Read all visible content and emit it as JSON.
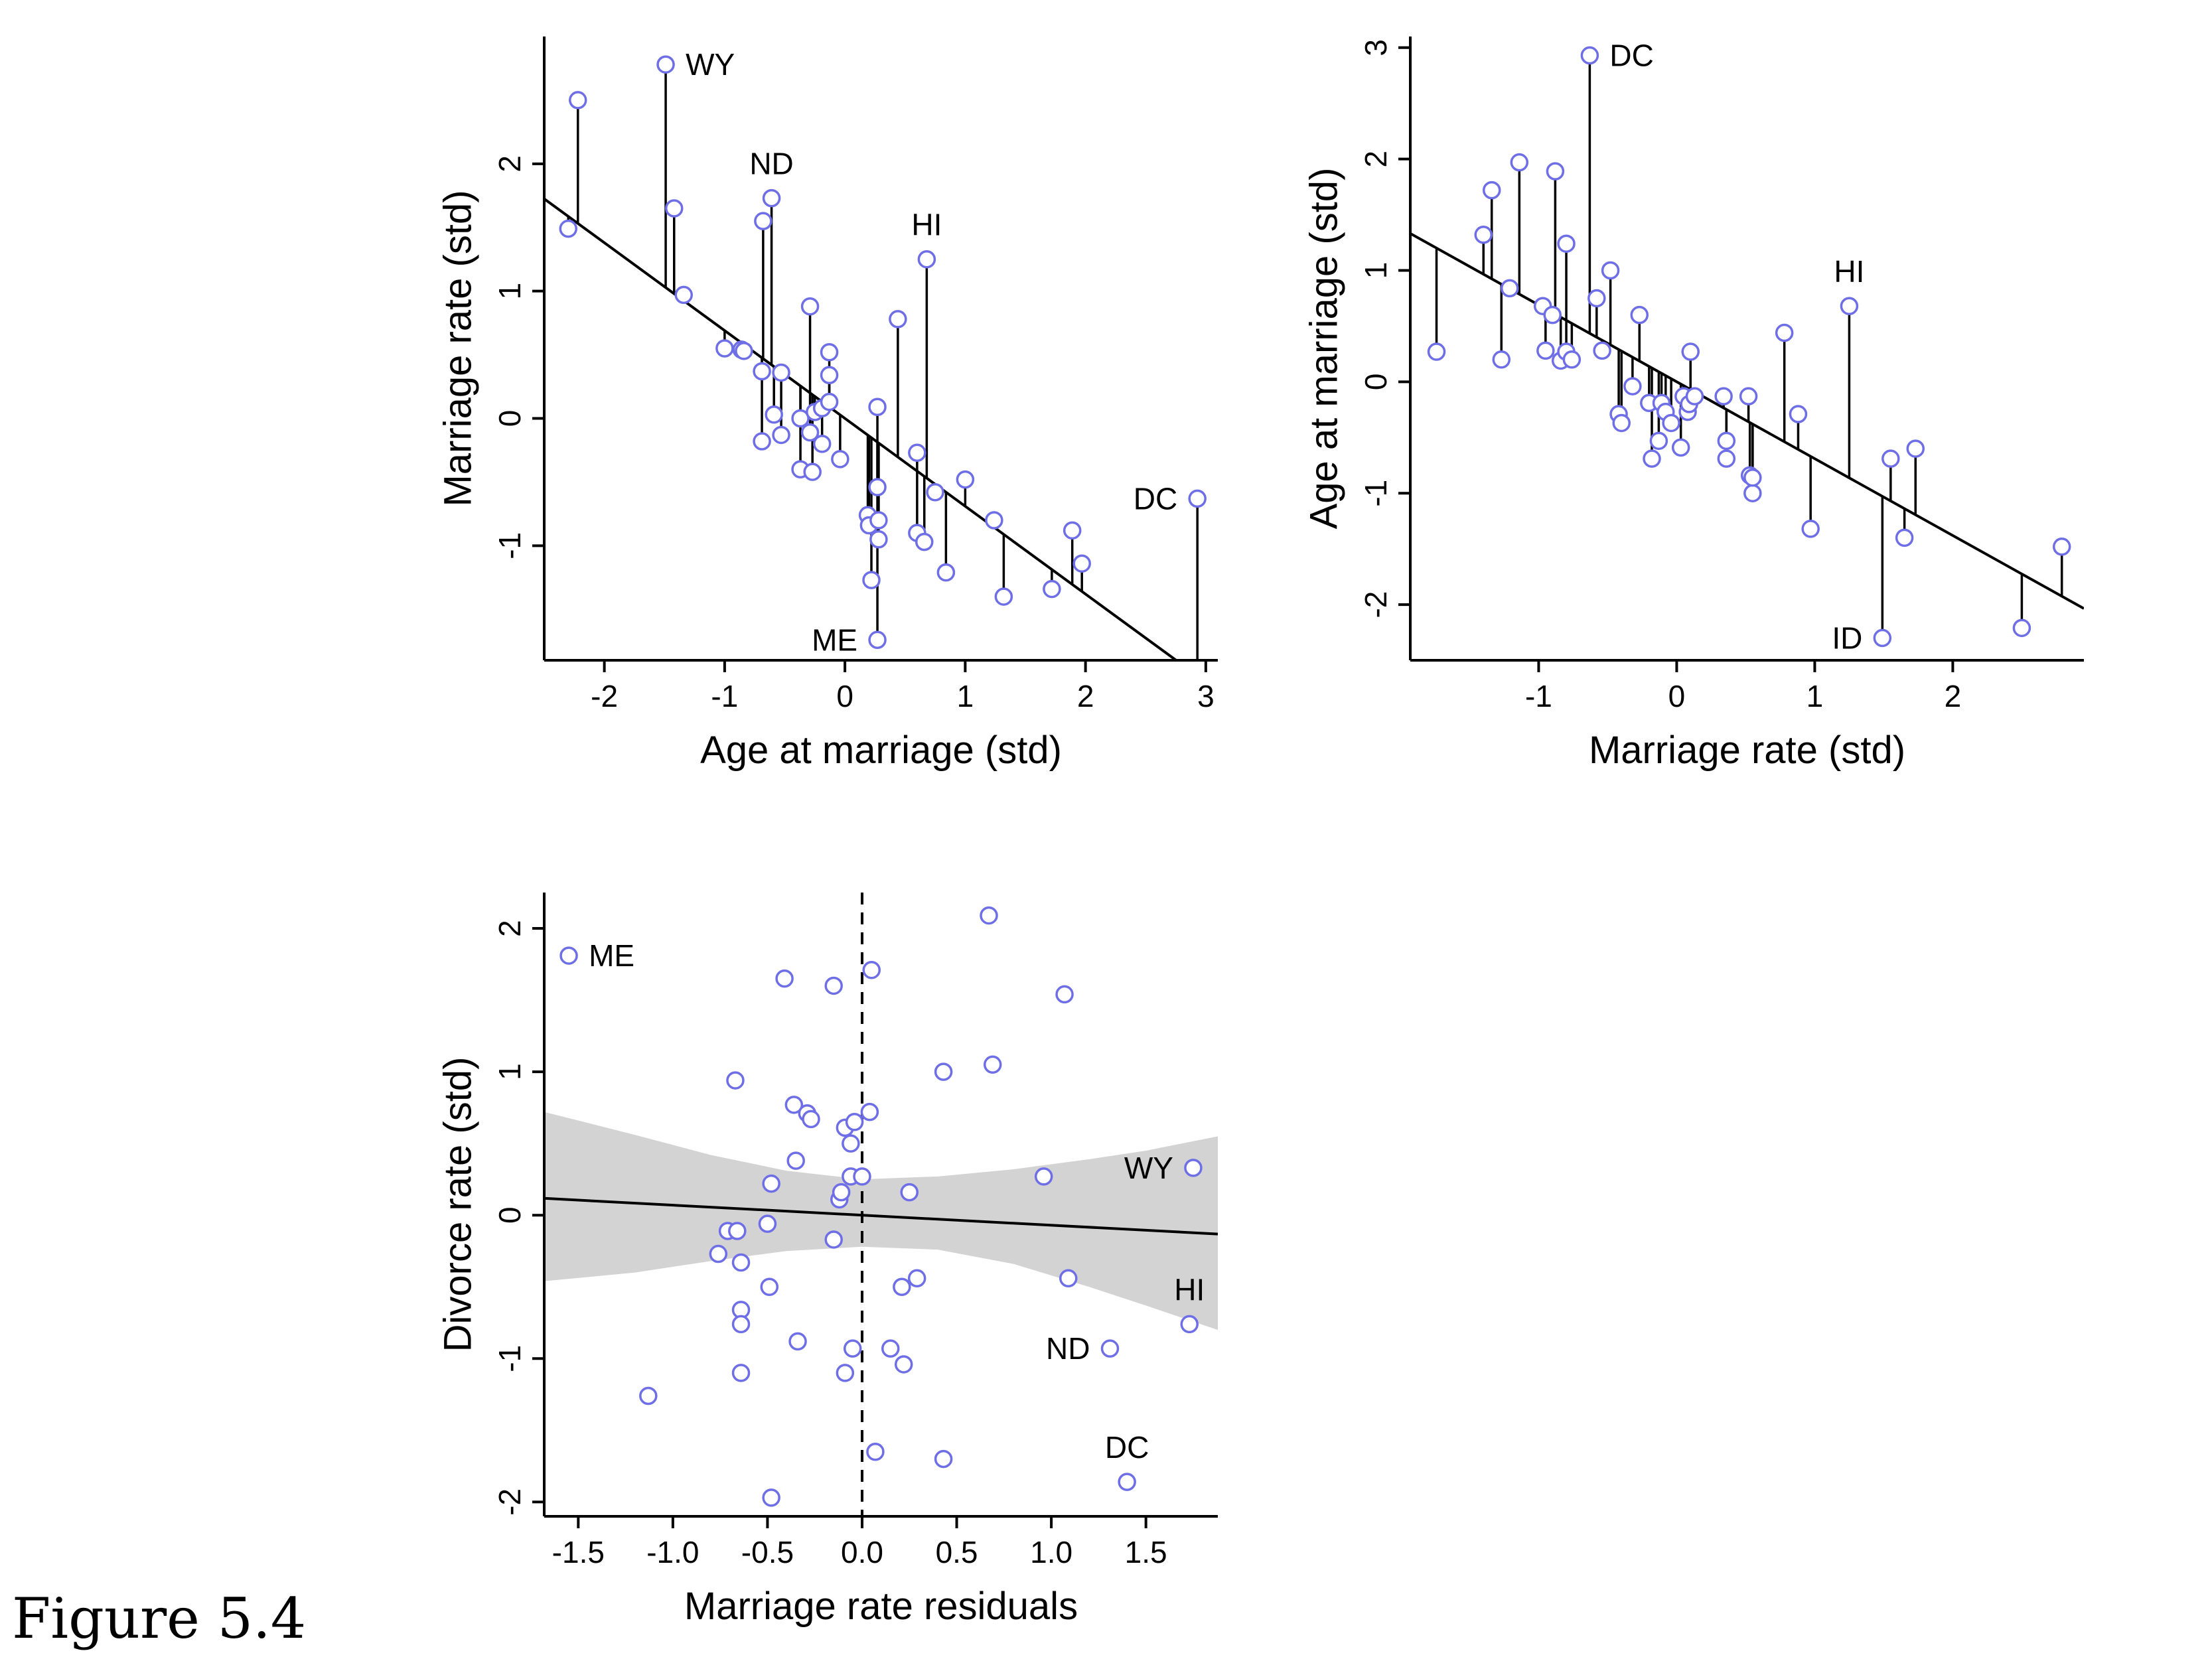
{
  "caption": "Figure 5.4",
  "colors": {
    "point": "#6e6ee6",
    "band": "#d3d3d3",
    "line": "#000000"
  },
  "chart_data": [
    {
      "type": "scatter",
      "title": "",
      "xlabel": "Age at marriage (std)",
      "ylabel": "Marriage rate (std)",
      "xlim": [
        -2.5,
        3.1
      ],
      "ylim": [
        -1.9,
        3.0
      ],
      "xticks": [
        -2,
        -1,
        0,
        1,
        2,
        3
      ],
      "yticks": [
        -1,
        0,
        1,
        2
      ],
      "xticklabels": [
        "-2",
        "-1",
        "0",
        "1",
        "2",
        "3"
      ],
      "yticklabels": [
        "-1",
        "0",
        "1",
        "2"
      ],
      "regression": {
        "intercept": 0.0,
        "slope": -0.69
      },
      "residual_segments": true,
      "labels": [
        {
          "text": "WY",
          "x": -1.49,
          "y": 2.78,
          "side": "right"
        },
        {
          "text": "ND",
          "x": -0.61,
          "y": 1.73,
          "side": "top"
        },
        {
          "text": "HI",
          "x": 0.68,
          "y": 1.25,
          "side": "top"
        },
        {
          "text": "DC",
          "x": 2.93,
          "y": -0.63,
          "side": "left"
        },
        {
          "text": "ME",
          "x": 0.27,
          "y": -1.74,
          "side": "left"
        }
      ],
      "points": [
        [
          -2.3,
          1.49
        ],
        [
          -2.22,
          2.5
        ],
        [
          -1.49,
          2.78
        ],
        [
          -1.42,
          1.65
        ],
        [
          -1.34,
          0.97
        ],
        [
          -1.0,
          0.55
        ],
        [
          -0.86,
          0.54
        ],
        [
          -0.84,
          0.53
        ],
        [
          -0.69,
          0.37
        ],
        [
          -0.68,
          1.55
        ],
        [
          -0.69,
          -0.18
        ],
        [
          -0.61,
          1.73
        ],
        [
          -0.59,
          0.03
        ],
        [
          -0.53,
          0.36
        ],
        [
          -0.53,
          -0.13
        ],
        [
          -0.37,
          0.0
        ],
        [
          -0.37,
          -0.4
        ],
        [
          -0.29,
          0.88
        ],
        [
          -0.29,
          -0.11
        ],
        [
          -0.27,
          -0.42
        ],
        [
          -0.25,
          0.05
        ],
        [
          -0.19,
          0.08
        ],
        [
          -0.19,
          -0.2
        ],
        [
          -0.13,
          0.52
        ],
        [
          -0.13,
          0.34
        ],
        [
          -0.13,
          0.13
        ],
        [
          -0.04,
          -0.32
        ],
        [
          0.27,
          0.09
        ],
        [
          0.27,
          -0.54
        ],
        [
          0.19,
          -0.76
        ],
        [
          0.2,
          -0.84
        ],
        [
          0.22,
          -1.27
        ],
        [
          0.28,
          -0.8
        ],
        [
          0.28,
          -0.95
        ],
        [
          0.27,
          -1.74
        ],
        [
          0.44,
          0.78
        ],
        [
          0.6,
          -0.27
        ],
        [
          0.6,
          -0.9
        ],
        [
          0.66,
          -0.97
        ],
        [
          0.68,
          1.25
        ],
        [
          0.75,
          -0.58
        ],
        [
          0.84,
          -1.21
        ],
        [
          1.0,
          -0.48
        ],
        [
          1.24,
          -0.8
        ],
        [
          1.32,
          -1.4
        ],
        [
          1.72,
          -1.34
        ],
        [
          1.89,
          -0.88
        ],
        [
          1.97,
          -1.14
        ],
        [
          2.93,
          -0.63
        ]
      ]
    },
    {
      "type": "scatter",
      "title": "",
      "xlabel": "Marriage rate (std)",
      "ylabel": "Age at marriage (std)",
      "xlim": [
        -1.93,
        2.95
      ],
      "ylim": [
        -2.5,
        3.1
      ],
      "xticks": [
        -1,
        0,
        1,
        2
      ],
      "yticks": [
        -2,
        -1,
        0,
        1,
        2,
        3
      ],
      "xticklabels": [
        "-1",
        "0",
        "1",
        "2"
      ],
      "yticklabels": [
        "-2",
        "-1",
        "0",
        "1",
        "2",
        "3"
      ],
      "regression": {
        "intercept": 0.0,
        "slope": -0.69
      },
      "residual_segments": true,
      "labels": [
        {
          "text": "DC",
          "x": -0.63,
          "y": 2.93,
          "side": "right"
        },
        {
          "text": "HI",
          "x": 1.25,
          "y": 0.68,
          "side": "top"
        },
        {
          "text": "ID",
          "x": 1.49,
          "y": -2.3,
          "side": "left"
        }
      ],
      "points": [
        [
          -1.74,
          0.27
        ],
        [
          -1.4,
          1.32
        ],
        [
          -1.34,
          1.72
        ],
        [
          -1.27,
          0.2
        ],
        [
          -1.21,
          0.84
        ],
        [
          -1.14,
          1.97
        ],
        [
          -0.97,
          0.68
        ],
        [
          -0.95,
          0.28
        ],
        [
          -0.9,
          0.6
        ],
        [
          -0.88,
          1.89
        ],
        [
          -0.84,
          0.19
        ],
        [
          -0.8,
          0.27
        ],
        [
          -0.8,
          1.24
        ],
        [
          -0.76,
          0.2
        ],
        [
          -0.63,
          2.93
        ],
        [
          -0.58,
          0.75
        ],
        [
          -0.54,
          0.28
        ],
        [
          -0.48,
          1.0
        ],
        [
          -0.42,
          -0.29
        ],
        [
          -0.4,
          -0.37
        ],
        [
          -0.32,
          -0.04
        ],
        [
          -0.27,
          0.6
        ],
        [
          -0.2,
          -0.19
        ],
        [
          -0.18,
          -0.69
        ],
        [
          -0.13,
          -0.53
        ],
        [
          -0.11,
          -0.19
        ],
        [
          -0.08,
          -0.27
        ],
        [
          -0.04,
          -0.37
        ],
        [
          0.03,
          -0.59
        ],
        [
          0.05,
          -0.13
        ],
        [
          0.08,
          -0.27
        ],
        [
          0.09,
          -0.2
        ],
        [
          0.1,
          0.27
        ],
        [
          0.13,
          -0.13
        ],
        [
          0.34,
          -0.13
        ],
        [
          0.36,
          -0.53
        ],
        [
          0.36,
          -0.69
        ],
        [
          0.52,
          -0.13
        ],
        [
          0.53,
          -0.84
        ],
        [
          0.55,
          -1.0
        ],
        [
          0.55,
          -0.86
        ],
        [
          0.78,
          0.44
        ],
        [
          0.88,
          -0.29
        ],
        [
          0.97,
          -1.32
        ],
        [
          1.25,
          0.68
        ],
        [
          1.49,
          -2.3
        ],
        [
          1.55,
          -0.69
        ],
        [
          1.65,
          -1.4
        ],
        [
          1.73,
          -0.6
        ],
        [
          2.5,
          -2.21
        ],
        [
          2.79,
          -1.48
        ]
      ]
    },
    {
      "type": "scatter",
      "title": "",
      "xlabel": "Marriage rate residuals",
      "ylabel": "Divorce rate (std)",
      "xlim": [
        -1.68,
        1.88
      ],
      "ylim": [
        -2.1,
        2.25
      ],
      "xticks": [
        -1.5,
        -1.0,
        -0.5,
        0.0,
        0.5,
        1.0,
        1.5
      ],
      "yticks": [
        -2,
        -1,
        0,
        1,
        2
      ],
      "xticklabels": [
        "-1.5",
        "-1.0",
        "-0.5",
        "0.0",
        "0.5",
        "1.0",
        "1.5"
      ],
      "yticklabels": [
        "-2",
        "-1",
        "0",
        "1",
        "2"
      ],
      "regression": {
        "intercept": 0.0,
        "slope": -0.07
      },
      "vline_dashed": 0.0,
      "band": {
        "x": [
          -1.68,
          -1.2,
          -0.8,
          -0.4,
          0.0,
          0.4,
          0.8,
          1.2,
          1.5,
          1.88
        ],
        "upper": [
          0.72,
          0.56,
          0.42,
          0.31,
          0.25,
          0.27,
          0.32,
          0.39,
          0.45,
          0.55
        ],
        "lower": [
          -0.46,
          -0.4,
          -0.32,
          -0.25,
          -0.22,
          -0.24,
          -0.34,
          -0.5,
          -0.63,
          -0.8
        ]
      },
      "labels": [
        {
          "text": "ME",
          "x": -1.55,
          "y": 1.81,
          "side": "right"
        },
        {
          "text": "WY",
          "x": 1.75,
          "y": 0.33,
          "side": "left"
        },
        {
          "text": "HI",
          "x": 1.73,
          "y": -0.76,
          "side": "top"
        },
        {
          "text": "ND",
          "x": 1.31,
          "y": -0.93,
          "side": "left"
        },
        {
          "text": "DC",
          "x": 1.4,
          "y": -1.86,
          "side": "top"
        }
      ],
      "points": [
        [
          -1.55,
          1.81
        ],
        [
          -1.13,
          -1.26
        ],
        [
          -0.76,
          -0.27
        ],
        [
          -0.71,
          -0.11
        ],
        [
          -0.67,
          0.94
        ],
        [
          -0.66,
          -0.11
        ],
        [
          -0.64,
          -0.33
        ],
        [
          -0.64,
          -0.66
        ],
        [
          -0.64,
          -0.76
        ],
        [
          -0.64,
          -1.1
        ],
        [
          -0.5,
          -0.06
        ],
        [
          -0.49,
          -0.5
        ],
        [
          -0.48,
          0.22
        ],
        [
          -0.48,
          -1.97
        ],
        [
          -0.41,
          1.65
        ],
        [
          -0.36,
          0.77
        ],
        [
          -0.35,
          0.38
        ],
        [
          -0.34,
          -0.88
        ],
        [
          -0.29,
          0.71
        ],
        [
          -0.27,
          0.67
        ],
        [
          -0.15,
          1.6
        ],
        [
          -0.15,
          -0.17
        ],
        [
          -0.12,
          0.11
        ],
        [
          -0.11,
          0.16
        ],
        [
          -0.09,
          0.61
        ],
        [
          -0.09,
          -1.1
        ],
        [
          -0.06,
          0.5
        ],
        [
          -0.06,
          0.27
        ],
        [
          -0.05,
          -0.93
        ],
        [
          -0.04,
          0.65
        ],
        [
          0.0,
          0.27
        ],
        [
          0.04,
          0.72
        ],
        [
          0.05,
          1.71
        ],
        [
          0.07,
          -1.65
        ],
        [
          0.15,
          -0.93
        ],
        [
          0.21,
          -0.5
        ],
        [
          0.22,
          -1.04
        ],
        [
          0.25,
          0.16
        ],
        [
          0.29,
          -0.44
        ],
        [
          0.43,
          1.0
        ],
        [
          0.43,
          -1.7
        ],
        [
          0.67,
          2.09
        ],
        [
          0.69,
          1.05
        ],
        [
          0.96,
          0.27
        ],
        [
          1.07,
          1.54
        ],
        [
          1.09,
          -0.44
        ],
        [
          1.31,
          -0.93
        ],
        [
          1.4,
          -1.86
        ],
        [
          1.73,
          -0.76
        ],
        [
          1.75,
          0.33
        ]
      ]
    }
  ]
}
